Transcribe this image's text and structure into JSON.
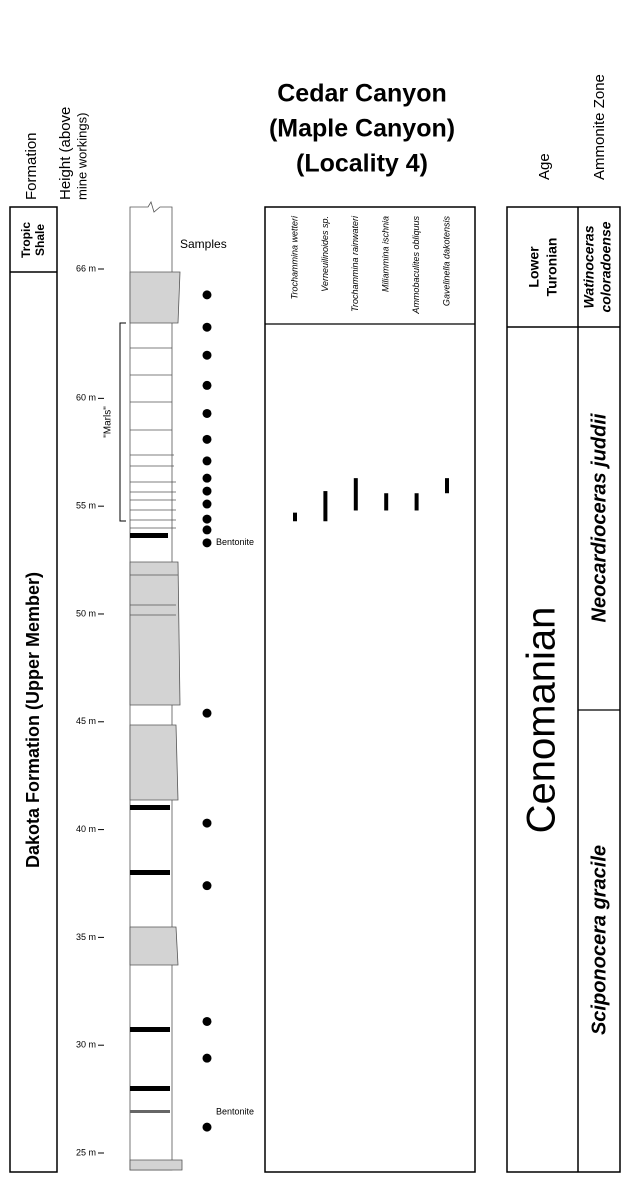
{
  "title": [
    "Cedar Canyon",
    "(Maple Canyon)",
    "(Locality 4)"
  ],
  "headers": {
    "formation": "Formation",
    "height_line1": "Height (above",
    "height_line2": "mine workings)",
    "age": "Age",
    "ammonite_zone": "Ammonite Zone"
  },
  "formations": {
    "upper": [
      "Tropic",
      "Shale"
    ],
    "main": "Dakota Formation (Upper Member)"
  },
  "height_ticks": [
    {
      "value": 66,
      "label": "66 m"
    },
    {
      "value": 60,
      "label": "60 m"
    },
    {
      "value": 55,
      "label": "55 m"
    },
    {
      "value": 50,
      "label": "50 m"
    },
    {
      "value": 45,
      "label": "45 m"
    },
    {
      "value": 40,
      "label": "40 m"
    },
    {
      "value": 35,
      "label": "35 m"
    },
    {
      "value": 30,
      "label": "30 m"
    },
    {
      "value": 25,
      "label": "25 m"
    }
  ],
  "samples_label": "Samples",
  "samples": [
    64.8,
    63.3,
    62.0,
    60.6,
    59.3,
    58.1,
    57.1,
    56.3,
    55.7,
    55.1,
    54.4,
    53.9,
    53.3,
    45.4,
    40.3,
    37.4,
    31.1,
    29.4,
    26.2
  ],
  "bentonites": [
    {
      "label": "Bentonite",
      "height": 53.3
    },
    {
      "label": "Bentonite",
      "height": 26.9
    }
  ],
  "marls_label": "\"Marls\"",
  "taxa": [
    {
      "name": "Trochammina wetteri",
      "range": [
        54.3,
        54.7
      ]
    },
    {
      "name": "Verneuilinoides sp.",
      "range": [
        54.3,
        55.7
      ]
    },
    {
      "name": "Trochammina rainwateri",
      "range": [
        54.8,
        56.3
      ]
    },
    {
      "name": "Miliammina ischnia",
      "range": [
        54.8,
        55.6
      ]
    },
    {
      "name": "Ammobaculites obliquus",
      "range": [
        54.8,
        55.6
      ]
    },
    {
      "name": "Gavelinella dakotensis",
      "range": [
        55.6,
        56.3
      ]
    }
  ],
  "ages": {
    "upper": [
      "Lower",
      "Turonian"
    ],
    "main": "Cenomanian"
  },
  "zones": {
    "upper": [
      "Watinoceras",
      "coloradoense"
    ],
    "middle": "Neocardioceras juddii",
    "lower": "Sciponocera gracile"
  }
}
